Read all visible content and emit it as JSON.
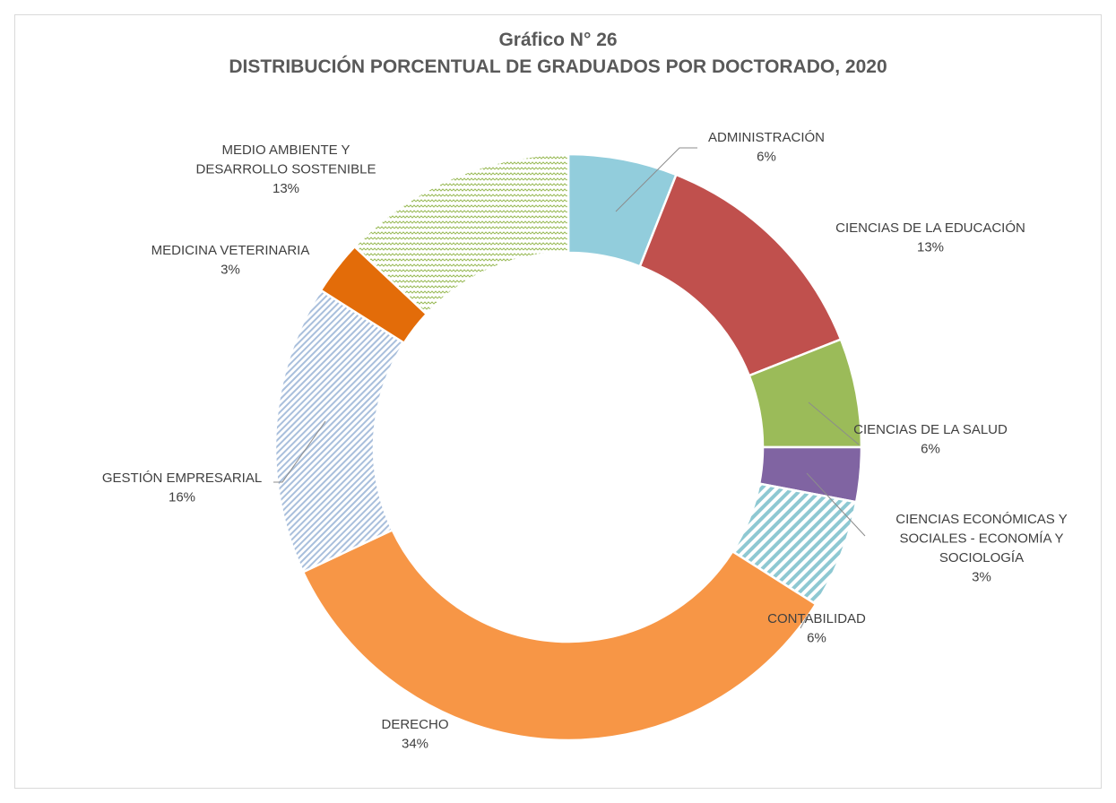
{
  "chart": {
    "title": "Gráfico N° 26",
    "subtitle": "DISTRIBUCIÓN PORCENTUAL DE GRADUADOS POR DOCTORADO, 2020"
  },
  "chart_data": {
    "type": "pie",
    "variant": "donut",
    "title": "Gráfico N° 26",
    "subtitle": "DISTRIBUCIÓN PORCENTUAL DE GRADUADOS POR DOCTORADO, 2020",
    "slices": [
      {
        "name": "ADMINISTRACIÓN",
        "value": 6,
        "label": "6%",
        "color": "#92cddc",
        "pattern": "solid"
      },
      {
        "name": "CIENCIAS DE LA EDUCACIÓN",
        "value": 13,
        "label": "13%",
        "color": "#c0504d",
        "pattern": "solid"
      },
      {
        "name": "CIENCIAS DE LA SALUD",
        "value": 6,
        "label": "6%",
        "color": "#9bbb59",
        "pattern": "solid"
      },
      {
        "name": "CIENCIAS ECONÓMICAS Y SOCIALES - ECONOMÍA Y SOCIOLOGÍA",
        "value": 3,
        "label": "3%",
        "color": "#8064a2",
        "pattern": "solid"
      },
      {
        "name": "CONTABILIDAD",
        "value": 6,
        "label": "6%",
        "color": "#8ec8d2",
        "pattern": "diagonal-stripes"
      },
      {
        "name": "DERECHO",
        "value": 34,
        "label": "34%",
        "color": "#f79646",
        "pattern": "solid"
      },
      {
        "name": "GESTIÓN EMPRESARIAL",
        "value": 16,
        "label": "16%",
        "color": "#95b3d7",
        "pattern": "diagonal-stripes-fine"
      },
      {
        "name": "MEDICINA VETERINARIA",
        "value": 3,
        "label": "3%",
        "color": "#e36c09",
        "pattern": "solid"
      },
      {
        "name": "MEDIO AMBIENTE Y DESARROLLO SOSTENIBLE",
        "value": 13,
        "label": "13%",
        "color": "#9bbb59",
        "pattern": "wave"
      }
    ]
  },
  "labels": {
    "administracion": {
      "lines": [
        "ADMINISTRACIÓN",
        "6%"
      ]
    },
    "educacion": {
      "lines": [
        "CIENCIAS DE LA EDUCACIÓN",
        "13%"
      ]
    },
    "salud": {
      "lines": [
        "CIENCIAS DE LA SALUD",
        "6%"
      ]
    },
    "economicas": {
      "lines": [
        "CIENCIAS ECONÓMICAS Y",
        "SOCIALES - ECONOMÍA Y",
        "SOCIOLOGÍA",
        "3%"
      ]
    },
    "contabilidad": {
      "lines": [
        "CONTABILIDAD",
        "6%"
      ]
    },
    "derecho": {
      "lines": [
        "DERECHO",
        "34%"
      ]
    },
    "gestion": {
      "lines": [
        "GESTIÓN EMPRESARIAL",
        "16%"
      ]
    },
    "veterinaria": {
      "lines": [
        "MEDICINA VETERINARIA",
        "3%"
      ]
    },
    "ambiente": {
      "lines": [
        "MEDIO AMBIENTE Y",
        "DESARROLLO SOSTENIBLE",
        "13%"
      ]
    }
  }
}
